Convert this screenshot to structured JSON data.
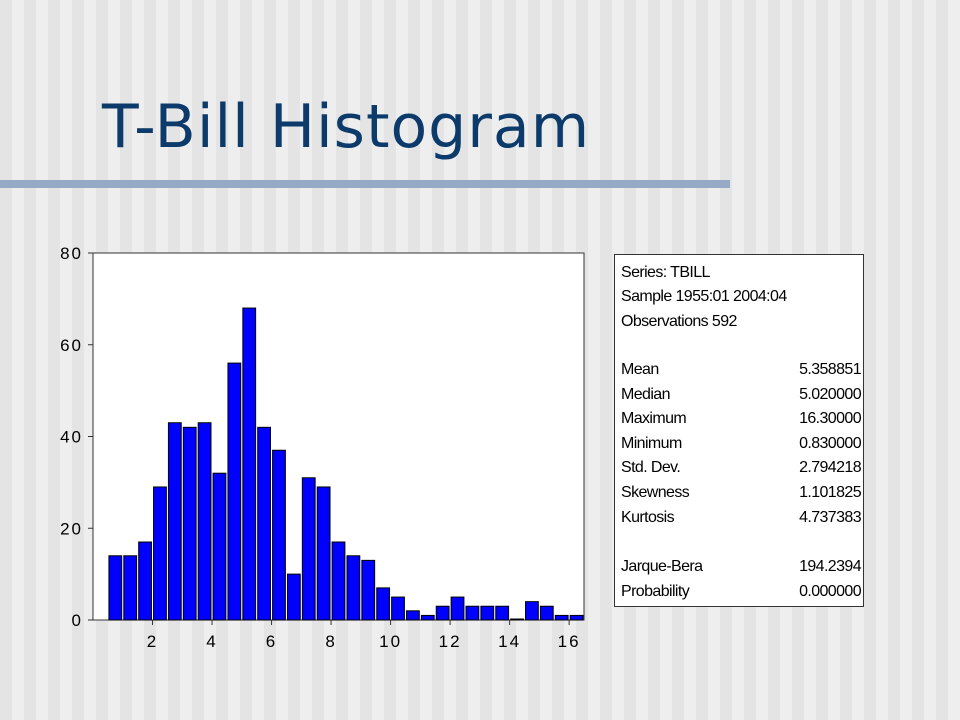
{
  "slide": {
    "title": "T-Bill Histogram"
  },
  "chart_data": {
    "type": "bar",
    "xlim": [
      0,
      16.5
    ],
    "ylim": [
      0,
      80
    ],
    "x_ticks": [
      2,
      4,
      6,
      8,
      10,
      12,
      14,
      16
    ],
    "y_ticks": [
      0,
      20,
      40,
      60,
      80
    ],
    "bin_width": 0.5,
    "bins": [
      {
        "x0": 0.5,
        "x1": 1.0,
        "count": 14
      },
      {
        "x0": 1.0,
        "x1": 1.5,
        "count": 14
      },
      {
        "x0": 1.5,
        "x1": 2.0,
        "count": 17
      },
      {
        "x0": 2.0,
        "x1": 2.5,
        "count": 29
      },
      {
        "x0": 2.5,
        "x1": 3.0,
        "count": 43
      },
      {
        "x0": 3.0,
        "x1": 3.5,
        "count": 42
      },
      {
        "x0": 3.5,
        "x1": 4.0,
        "count": 43
      },
      {
        "x0": 4.0,
        "x1": 4.5,
        "count": 32
      },
      {
        "x0": 4.5,
        "x1": 5.0,
        "count": 56
      },
      {
        "x0": 5.0,
        "x1": 5.5,
        "count": 68
      },
      {
        "x0": 5.5,
        "x1": 6.0,
        "count": 42
      },
      {
        "x0": 6.0,
        "x1": 6.5,
        "count": 37
      },
      {
        "x0": 6.5,
        "x1": 7.0,
        "count": 10
      },
      {
        "x0": 7.0,
        "x1": 7.5,
        "count": 31
      },
      {
        "x0": 7.5,
        "x1": 8.0,
        "count": 29
      },
      {
        "x0": 8.0,
        "x1": 8.5,
        "count": 17
      },
      {
        "x0": 8.5,
        "x1": 9.0,
        "count": 14
      },
      {
        "x0": 9.0,
        "x1": 9.5,
        "count": 13
      },
      {
        "x0": 9.5,
        "x1": 10.0,
        "count": 7
      },
      {
        "x0": 10.0,
        "x1": 10.5,
        "count": 5
      },
      {
        "x0": 10.5,
        "x1": 11.0,
        "count": 2
      },
      {
        "x0": 11.0,
        "x1": 11.5,
        "count": 1
      },
      {
        "x0": 11.5,
        "x1": 12.0,
        "count": 3
      },
      {
        "x0": 12.0,
        "x1": 12.5,
        "count": 5
      },
      {
        "x0": 12.5,
        "x1": 13.0,
        "count": 3
      },
      {
        "x0": 13.0,
        "x1": 13.5,
        "count": 3
      },
      {
        "x0": 13.5,
        "x1": 14.0,
        "count": 3
      },
      {
        "x0": 14.0,
        "x1": 14.5,
        "count": 0
      },
      {
        "x0": 14.5,
        "x1": 15.0,
        "count": 4
      },
      {
        "x0": 15.0,
        "x1": 15.5,
        "count": 3
      },
      {
        "x0": 15.5,
        "x1": 16.0,
        "count": 1
      },
      {
        "x0": 16.0,
        "x1": 16.5,
        "count": 1
      }
    ],
    "bar_color": "#0000ff"
  },
  "stats": {
    "series_line": "Series: TBILL",
    "sample_line": "Sample 1955:01 2004:04",
    "obs_line": "Observations 592",
    "rows": [
      {
        "label": "Mean",
        "value": "5.358851"
      },
      {
        "label": "Median",
        "value": "5.020000"
      },
      {
        "label": "Maximum",
        "value": "16.30000"
      },
      {
        "label": "Minimum",
        "value": "0.830000"
      },
      {
        "label": "Std. Dev.",
        "value": "2.794218"
      },
      {
        "label": "Skewness",
        "value": "1.101825"
      },
      {
        "label": "Kurtosis",
        "value": "4.737383"
      },
      {
        "label": "Jarque-Bera",
        "value": "194.2394"
      },
      {
        "label": "Probability",
        "value": "0.000000"
      }
    ]
  }
}
